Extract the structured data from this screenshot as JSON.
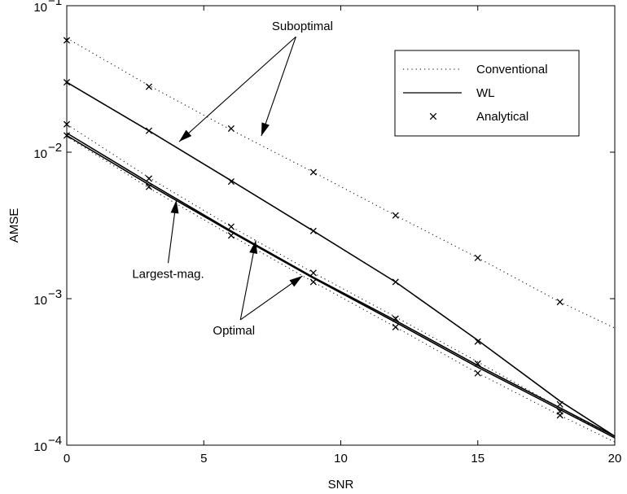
{
  "chart_data": {
    "type": "line",
    "title": "",
    "xlabel": "SNR",
    "ylabel": "AMSE",
    "xlim": [
      0,
      20
    ],
    "ylim": [
      0.0001,
      0.1
    ],
    "yscale": "log",
    "grid": false,
    "x_ticks": [
      0,
      5,
      10,
      15,
      20
    ],
    "x_tick_labels": [
      "0",
      "5",
      "10",
      "15",
      "20"
    ],
    "y_ticks": [
      0.0001,
      0.001,
      0.01,
      0.1
    ],
    "y_tick_bases": [
      "10",
      "10",
      "10",
      "10"
    ],
    "y_tick_exponents": [
      "−4",
      "−3",
      "−2",
      "−1"
    ],
    "legend": {
      "placement": "top-right",
      "entries": [
        {
          "label": "Conventional",
          "style": "dotted"
        },
        {
          "label": "WL",
          "style": "solid"
        },
        {
          "label": "Analytical",
          "style": "marker-x"
        }
      ]
    },
    "series": [
      {
        "group": "Conventional",
        "case": "Suboptimal",
        "x": [
          0,
          3,
          6,
          9,
          12,
          15,
          18,
          20
        ],
        "y": [
          0.06,
          0.0285,
          0.0142,
          0.0073,
          0.0037,
          0.0019,
          0.00095,
          0.00063
        ]
      },
      {
        "group": "WL",
        "case": "Suboptimal",
        "x": [
          0,
          3,
          6,
          9,
          12,
          15,
          18,
          20
        ],
        "y": [
          0.03,
          0.014,
          0.0064,
          0.0029,
          0.0013,
          0.00052,
          0.0002,
          0.000115
        ]
      },
      {
        "group": "Conventional",
        "case": "Largest-mag.",
        "x": [
          0,
          3,
          6,
          9,
          12,
          15,
          18,
          20
        ],
        "y": [
          0.0155,
          0.0067,
          0.0031,
          0.0015,
          0.00075,
          0.00037,
          0.00018,
          0.000112
        ]
      },
      {
        "group": "WL",
        "case": "Largest-mag.",
        "x": [
          0,
          3,
          6,
          9,
          12,
          15,
          18,
          20
        ],
        "y": [
          0.0135,
          0.0062,
          0.0029,
          0.0014,
          0.00071,
          0.00035,
          0.00018,
          0.000115
        ]
      },
      {
        "group": "WL",
        "case": "Optimal",
        "x": [
          0,
          3,
          6,
          9,
          12,
          15,
          18,
          20
        ],
        "y": [
          0.013,
          0.006,
          0.00285,
          0.00138,
          0.00069,
          0.00034,
          0.000175,
          0.000112
        ]
      },
      {
        "group": "Conventional",
        "case": "Optimal",
        "x": [
          0,
          3,
          6,
          9,
          12,
          15,
          18,
          20
        ],
        "y": [
          0.0128,
          0.0057,
          0.0027,
          0.0013,
          0.00064,
          0.00031,
          0.00016,
          0.000105
        ]
      }
    ],
    "analytical_points": {
      "x": [
        0,
        0,
        0,
        0,
        3,
        3,
        3,
        3,
        6,
        6,
        6,
        6,
        9,
        9,
        9,
        9,
        12,
        12,
        12,
        12,
        15,
        15,
        15,
        15,
        18,
        18,
        18,
        18
      ],
      "y": [
        0.058,
        0.03,
        0.0155,
        0.013,
        0.028,
        0.014,
        0.0066,
        0.0058,
        0.0145,
        0.0063,
        0.0031,
        0.0027,
        0.0073,
        0.0029,
        0.0015,
        0.0013,
        0.0037,
        0.0013,
        0.00073,
        0.00064,
        0.0019,
        0.00051,
        0.00036,
        0.00031,
        0.00095,
        0.00019,
        0.00017,
        0.00016
      ]
    },
    "annotations": [
      {
        "text": "Suboptimal",
        "x": 8.6,
        "y": 0.068,
        "arrows_to": [
          [
            4.1,
            0.0118
          ],
          [
            7.1,
            0.0129
          ]
        ]
      },
      {
        "text": "Largest-mag.",
        "x": 3.7,
        "y": 0.00139,
        "arrows_to": [
          [
            4.0,
            0.0047
          ]
        ]
      },
      {
        "text": "Optimal",
        "x": 6.1,
        "y": 0.00057,
        "arrows_to": [
          [
            6.9,
            0.0025
          ],
          [
            8.6,
            0.00143
          ]
        ]
      }
    ]
  }
}
